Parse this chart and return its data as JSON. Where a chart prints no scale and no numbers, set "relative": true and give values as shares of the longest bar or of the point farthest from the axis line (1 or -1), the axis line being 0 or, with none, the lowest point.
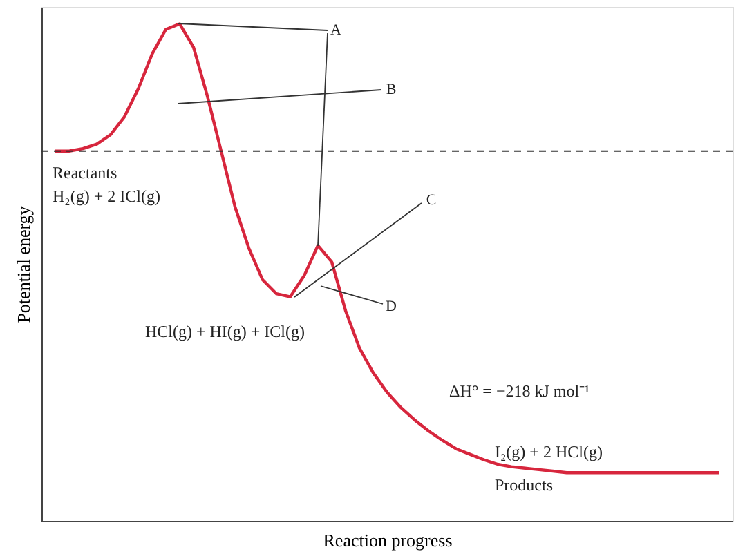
{
  "chart_data": {
    "type": "line",
    "relative": true,
    "xlabel": "Reaction progress",
    "ylabel": "Potential energy",
    "categories": [
      null,
      null,
      null,
      null,
      null,
      null,
      null,
      null,
      null,
      null,
      null,
      null,
      null,
      null,
      null,
      null,
      null,
      null,
      null,
      null,
      null,
      null,
      null,
      null,
      null,
      null,
      null,
      null,
      null,
      null,
      null,
      null,
      null,
      null,
      null,
      null,
      null,
      null,
      null,
      null,
      null,
      null,
      null,
      null,
      null,
      null,
      null,
      null,
      null
    ],
    "series": [
      {
        "color": "#d7263d",
        "values": [
          0.744,
          0.744,
          0.749,
          0.758,
          0.777,
          0.813,
          0.869,
          0.939,
          0.989,
          1,
          0.953,
          0.855,
          0.744,
          0.632,
          0.549,
          0.485,
          0.457,
          0.451,
          0.493,
          0.554,
          0.521,
          0.423,
          0.348,
          0.298,
          0.259,
          0.228,
          0.203,
          0.181,
          0.162,
          0.145,
          0.134,
          0.123,
          0.114,
          0.109,
          0.106,
          0.103,
          0.1,
          0.097,
          0.097,
          0.097,
          0.097,
          0.097,
          0.097,
          0.097,
          0.097,
          0.097,
          0.097,
          0.097,
          0.097
        ]
      }
    ],
    "ref_lines": [
      {
        "axis": "y",
        "value": 0.744,
        "color": "#333333",
        "line_style": "dashed"
      }
    ],
    "annotations": [
      "A",
      "B",
      "C",
      "D",
      "Reactants",
      "H₂(g) + 2 ICl(g)",
      "HCl(g) + HI(g) + ICl(g)",
      "ΔH° = −218 kJ mol⁻¹",
      "I₂(g) + 2 HCl(g)",
      "Products"
    ]
  }
}
